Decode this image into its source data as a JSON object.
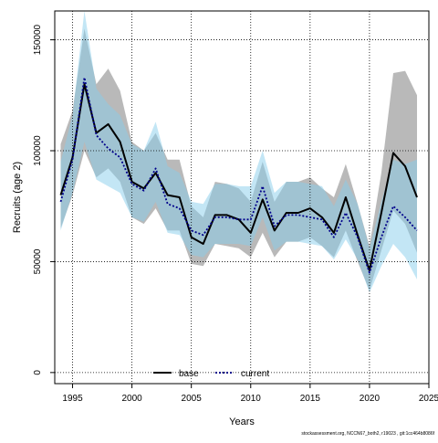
{
  "chart_data": {
    "type": "line",
    "title": "",
    "xlabel": "Years",
    "ylabel": "Recruits (age 2)",
    "xlim": [
      1993.5,
      2025.0
    ],
    "ylim": [
      -5000,
      163000
    ],
    "x_ticks": [
      1995,
      2000,
      2005,
      2010,
      2015,
      2020,
      2025
    ],
    "y_ticks": [
      0,
      50000,
      100000,
      150000
    ],
    "x": [
      1994,
      1995,
      1996,
      1997,
      1998,
      1999,
      2000,
      2001,
      2002,
      2003,
      2004,
      2005,
      2006,
      2007,
      2008,
      2009,
      2010,
      2011,
      2012,
      2013,
      2014,
      2015,
      2016,
      2017,
      2018,
      2019,
      2020,
      2021,
      2022,
      2023,
      2024
    ],
    "grid": true,
    "legend_position": "bottom-center",
    "footer": "stockassessment.org, NCCN67_both2, r19023 , git:1cc464b8086f",
    "series": [
      {
        "name": "base",
        "color": "#000000",
        "dash": "solid",
        "band_color": "#808080",
        "values": [
          80000,
          97000,
          130000,
          108000,
          112000,
          104000,
          86000,
          83000,
          90000,
          80000,
          79000,
          61000,
          58000,
          71000,
          71000,
          69000,
          63000,
          78000,
          64000,
          72000,
          72000,
          74000,
          70000,
          63000,
          79000,
          62000,
          46000,
          72000,
          99000,
          93000,
          79000
        ],
        "lower": [
          65000,
          80000,
          100000,
          88000,
          92000,
          86000,
          70000,
          67000,
          74000,
          64000,
          64000,
          49000,
          48000,
          58000,
          57000,
          56000,
          52000,
          63000,
          52000,
          59000,
          59000,
          61000,
          57000,
          52000,
          64000,
          50000,
          37000,
          55000,
          73000,
          67000,
          54000
        ],
        "upper": [
          103000,
          118000,
          155000,
          130000,
          137000,
          127000,
          104000,
          100000,
          108000,
          96000,
          96000,
          75000,
          70000,
          86000,
          85000,
          83000,
          77000,
          95000,
          77000,
          86000,
          86000,
          88000,
          83000,
          79000,
          94000,
          76000,
          57000,
          90000,
          135000,
          136000,
          125000
        ]
      },
      {
        "name": "current",
        "color": "#00008b",
        "dash": "dotted",
        "band_color": "#87ceeb",
        "values": [
          77000,
          96000,
          133000,
          107000,
          101000,
          97000,
          85000,
          82000,
          92000,
          76000,
          74000,
          64000,
          62000,
          70000,
          70000,
          69000,
          69000,
          84000,
          66000,
          71000,
          71000,
          70000,
          69000,
          61000,
          72000,
          61000,
          45000,
          61000,
          75000,
          70000,
          64000
        ],
        "lower": [
          64000,
          81000,
          104000,
          87000,
          84000,
          81000,
          70000,
          68000,
          77000,
          63000,
          62000,
          53000,
          52000,
          58000,
          58000,
          58000,
          57000,
          70000,
          55000,
          59000,
          59000,
          58000,
          57000,
          51000,
          60000,
          51000,
          36000,
          48000,
          58000,
          52000,
          42000
        ],
        "upper": [
          95000,
          116000,
          163000,
          128000,
          121000,
          116000,
          103000,
          100000,
          113000,
          93000,
          90000,
          77000,
          76000,
          85000,
          85000,
          84000,
          84000,
          100000,
          81000,
          86000,
          86000,
          85000,
          84000,
          75000,
          87000,
          76000,
          56000,
          77000,
          96000,
          94000,
          96000
        ]
      }
    ]
  }
}
